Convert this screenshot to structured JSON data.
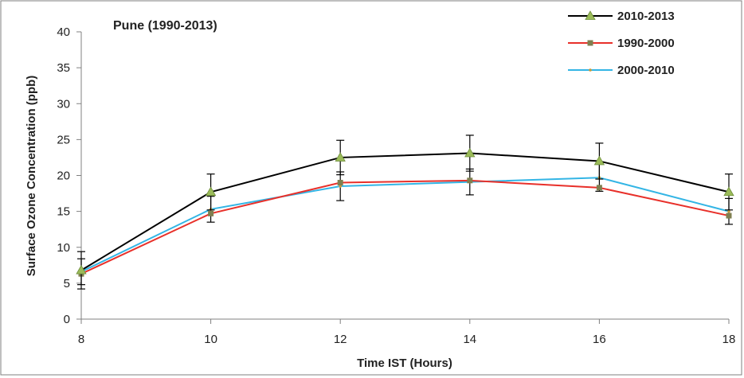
{
  "chart_data": {
    "type": "line",
    "title": "Pune (1990-2013)",
    "xlabel": "Time IST (Hours)",
    "ylabel": "Surface Ozone Concentration (ppb)",
    "x": [
      8,
      10,
      12,
      14,
      16,
      18
    ],
    "xlim": [
      8,
      18
    ],
    "ylim": [
      0,
      40
    ],
    "xticks": [
      8,
      10,
      12,
      14,
      16,
      18
    ],
    "yticks": [
      0,
      5,
      10,
      15,
      20,
      25,
      30,
      35,
      40
    ],
    "grid": false,
    "legend_position": "top-right",
    "series": [
      {
        "name": "2010-2013",
        "color": "#000000",
        "marker": "triangle",
        "marker_color": "#9bbb59",
        "values": [
          6.8,
          17.7,
          22.5,
          23.1,
          22.0,
          17.7
        ],
        "error": [
          2.6,
          2.5,
          2.4,
          2.5,
          2.5,
          2.5
        ]
      },
      {
        "name": "1990-2000",
        "color": "#e8302a",
        "marker": "square",
        "marker_color": "#7f7f50",
        "values": [
          6.3,
          14.7,
          19.0,
          19.3,
          18.3,
          14.4
        ]
      },
      {
        "name": "2000-2010",
        "color": "#33b5e5",
        "marker": "dot",
        "marker_color": "#c89a3a",
        "values": [
          6.6,
          15.3,
          18.5,
          19.1,
          19.7,
          15.0
        ],
        "error": [
          1.8,
          1.8,
          2.0,
          1.8,
          1.9,
          1.8
        ]
      }
    ]
  }
}
